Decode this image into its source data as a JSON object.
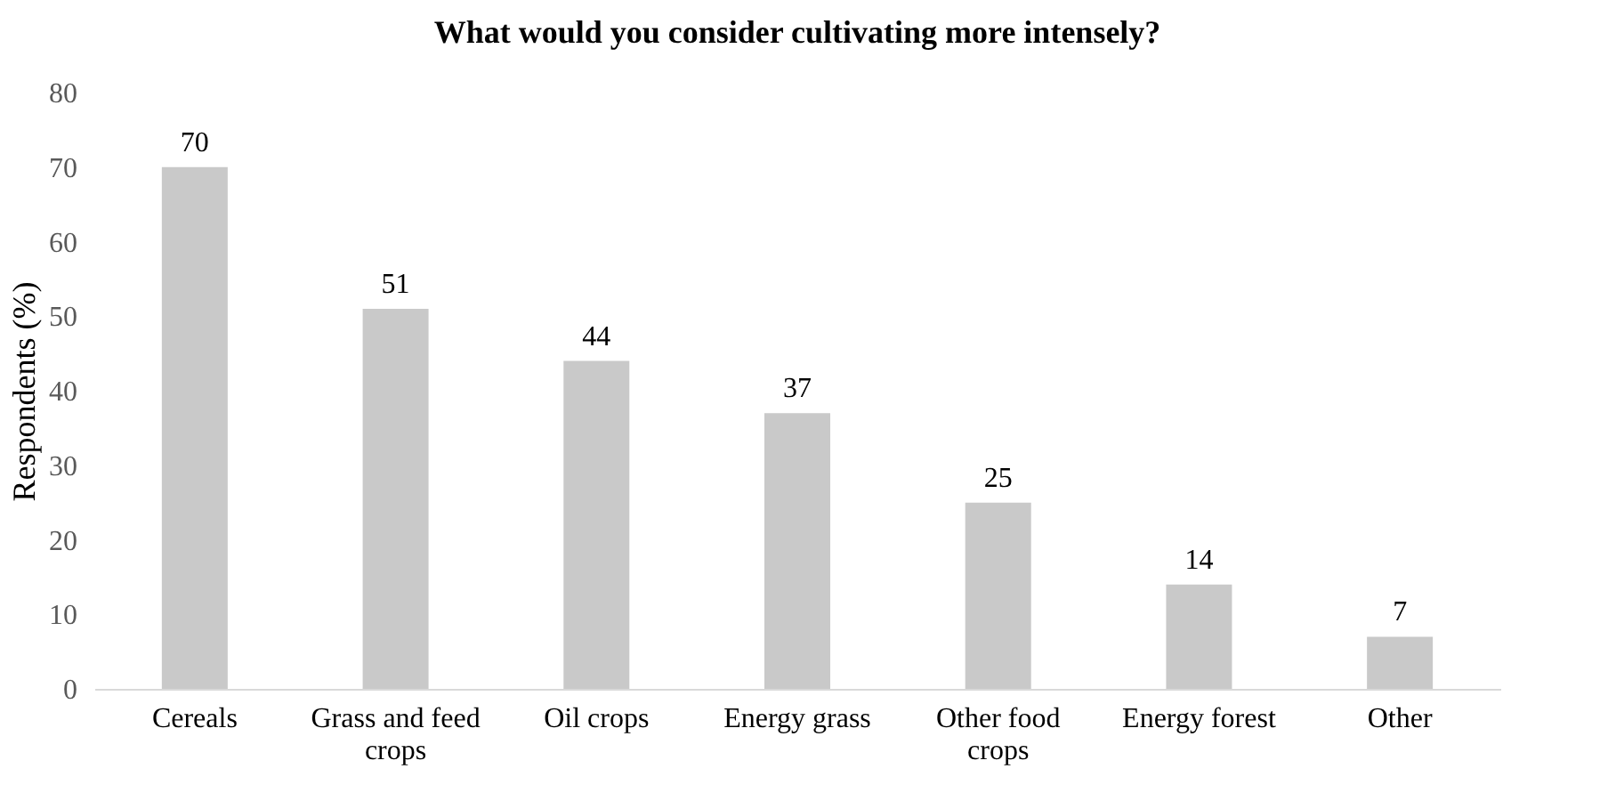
{
  "chart_data": {
    "type": "bar",
    "title": "What would you consider cultivating more intensely?",
    "ylabel": "Respondents (%)",
    "categories": [
      "Cereals",
      "Grass and feed crops",
      "Oil crops",
      "Energy grass",
      "Other food crops",
      "Energy forest",
      "Other"
    ],
    "values": [
      70,
      51,
      44,
      37,
      25,
      14,
      7
    ],
    "color": "#c9c9c9",
    "ylim": [
      0,
      80
    ],
    "yticks": [
      0,
      10,
      20,
      30,
      40,
      50,
      60,
      70,
      80
    ],
    "grid": false,
    "data_labels": true
  }
}
